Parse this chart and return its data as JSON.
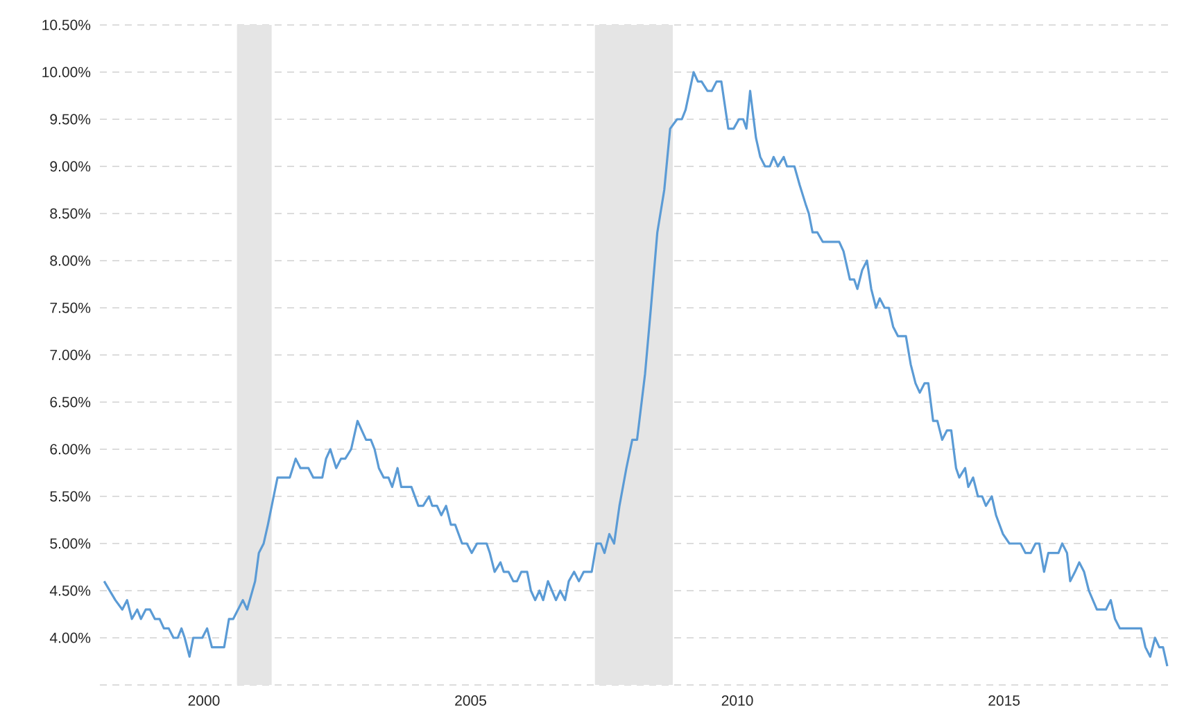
{
  "chart_data": {
    "type": "line",
    "legend": false,
    "grid": "y",
    "xlim": [
      1998.05,
      2018.1
    ],
    "xticks": [
      2000,
      2005,
      2010,
      2015
    ],
    "ylim": [
      3.5,
      10.5
    ],
    "yticks": [
      {
        "value": 3.5,
        "label": null
      },
      {
        "value": 4,
        "label": "4.00%"
      },
      {
        "value": 4.5,
        "label": "4.50%"
      },
      {
        "value": 5,
        "label": "5.00%"
      },
      {
        "value": 5.5,
        "label": "5.50%"
      },
      {
        "value": 6,
        "label": "6.00%"
      },
      {
        "value": 6.5,
        "label": "6.50%"
      },
      {
        "value": 7,
        "label": "7.00%"
      },
      {
        "value": 7.5,
        "label": "7.50%"
      },
      {
        "value": 8,
        "label": "8.00%"
      },
      {
        "value": 8.5,
        "label": "8.50%"
      },
      {
        "value": 9,
        "label": "9.00%"
      },
      {
        "value": 9.5,
        "label": "9.50%"
      },
      {
        "value": 10,
        "label": "10.00%"
      },
      {
        "value": 10.5,
        "label": "10.50%"
      }
    ],
    "bands": [
      {
        "axis": "x",
        "from": 2000.62,
        "to": 2001.27,
        "color": "#e5e5e5"
      },
      {
        "axis": "x",
        "from": 2007.33,
        "to": 2008.79,
        "color": "#e5e5e5"
      }
    ],
    "series": [
      {
        "color": "#5b9bd5",
        "x": [
          1998.13,
          1998.34,
          1998.47,
          1998.56,
          1998.65,
          1998.75,
          1998.82,
          1998.91,
          1998.99,
          1999.08,
          1999.17,
          1999.25,
          1999.34,
          1999.43,
          1999.51,
          1999.58,
          1999.64,
          1999.73,
          1999.8,
          1999.97,
          2000.06,
          2000.15,
          2000.38,
          2000.47,
          2000.55,
          2000.73,
          2000.81,
          2000.96,
          2001.03,
          2001.12,
          2001.2,
          2001.29,
          2001.38,
          2001.61,
          2001.72,
          2001.81,
          2001.96,
          2002.05,
          2002.22,
          2002.29,
          2002.37,
          2002.48,
          2002.57,
          2002.65,
          2002.76,
          2002.88,
          2002.96,
          2003.04,
          2003.13,
          2003.2,
          2003.28,
          2003.37,
          2003.46,
          2003.53,
          2003.63,
          2003.7,
          2003.89,
          2004.02,
          2004.11,
          2004.22,
          2004.28,
          2004.37,
          2004.45,
          2004.54,
          2004.63,
          2004.71,
          2004.84,
          2004.93,
          2005.02,
          2005.12,
          2005.3,
          2005.36,
          2005.45,
          2005.56,
          2005.62,
          2005.71,
          2005.8,
          2005.87,
          2005.95,
          2006.06,
          2006.13,
          2006.21,
          2006.29,
          2006.36,
          2006.45,
          2006.6,
          2006.68,
          2006.77,
          2006.84,
          2006.94,
          2007.03,
          2007.12,
          2007.27,
          2007.36,
          2007.44,
          2007.51,
          2007.6,
          2007.69,
          2007.79,
          2007.92,
          2008.03,
          2008.12,
          2008.27,
          2008.38,
          2008.5,
          2008.63,
          2008.74,
          2008.87,
          2008.96,
          2009.03,
          2009.18,
          2009.26,
          2009.33,
          2009.44,
          2009.52,
          2009.61,
          2009.7,
          2009.83,
          2009.93,
          2010.03,
          2010.11,
          2010.17,
          2010.24,
          2010.35,
          2010.43,
          2010.52,
          2010.61,
          2010.68,
          2010.76,
          2010.87,
          2010.93,
          2011.07,
          2011.17,
          2011.28,
          2011.34,
          2011.41,
          2011.5,
          2011.6,
          2011.91,
          2011.99,
          2012.11,
          2012.19,
          2012.25,
          2012.34,
          2012.43,
          2012.51,
          2012.6,
          2012.67,
          2012.76,
          2012.84,
          2012.92,
          2013.01,
          2013.16,
          2013.25,
          2013.34,
          2013.42,
          2013.51,
          2013.58,
          2013.67,
          2013.75,
          2013.84,
          2013.93,
          2014.01,
          2014.1,
          2014.16,
          2014.27,
          2014.33,
          2014.42,
          2014.51,
          2014.59,
          2014.66,
          2014.77,
          2014.85,
          2014.98,
          2015.1,
          2015.31,
          2015.4,
          2015.5,
          2015.59,
          2015.66,
          2015.75,
          2015.83,
          2016.02,
          2016.09,
          2016.18,
          2016.24,
          2016.33,
          2016.41,
          2016.5,
          2016.59,
          2016.74,
          2016.91,
          2017.0,
          2017.08,
          2017.17,
          2017.57,
          2017.65,
          2017.74,
          2017.83,
          2017.91,
          2017.98,
          2018.06
        ],
        "values": [
          4.6,
          4.4,
          4.3,
          4.4,
          4.2,
          4.3,
          4.2,
          4.3,
          4.3,
          4.2,
          4.2,
          4.1,
          4.1,
          4.0,
          4.0,
          4.1,
          4.0,
          3.8,
          4.0,
          4.0,
          4.1,
          3.9,
          3.9,
          4.2,
          4.2,
          4.4,
          4.3,
          4.6,
          4.9,
          5.0,
          5.2,
          5.45,
          5.7,
          5.7,
          5.9,
          5.8,
          5.8,
          5.7,
          5.7,
          5.9,
          6.0,
          5.8,
          5.9,
          5.9,
          6.0,
          6.3,
          6.2,
          6.1,
          6.1,
          6.0,
          5.8,
          5.7,
          5.7,
          5.6,
          5.8,
          5.6,
          5.6,
          5.4,
          5.4,
          5.5,
          5.4,
          5.4,
          5.3,
          5.4,
          5.2,
          5.2,
          5.0,
          5.0,
          4.9,
          5.0,
          5.0,
          4.9,
          4.7,
          4.8,
          4.7,
          4.7,
          4.6,
          4.6,
          4.7,
          4.7,
          4.5,
          4.4,
          4.5,
          4.4,
          4.6,
          4.4,
          4.5,
          4.4,
          4.6,
          4.7,
          4.6,
          4.7,
          4.7,
          5.0,
          5.0,
          4.9,
          5.1,
          5.0,
          5.4,
          5.8,
          6.1,
          6.1,
          6.8,
          7.5,
          8.3,
          8.75,
          9.4,
          9.5,
          9.5,
          9.6,
          10.0,
          9.9,
          9.9,
          9.8,
          9.8,
          9.9,
          9.9,
          9.4,
          9.4,
          9.5,
          9.5,
          9.4,
          9.8,
          9.3,
          9.1,
          9.0,
          9.0,
          9.1,
          9.0,
          9.1,
          9.0,
          9.0,
          8.8,
          8.6,
          8.5,
          8.3,
          8.3,
          8.2,
          8.2,
          8.1,
          7.8,
          7.8,
          7.7,
          7.9,
          8.0,
          7.7,
          7.5,
          7.6,
          7.5,
          7.5,
          7.3,
          7.2,
          7.2,
          6.9,
          6.7,
          6.6,
          6.7,
          6.7,
          6.3,
          6.3,
          6.1,
          6.2,
          6.2,
          5.8,
          5.7,
          5.8,
          5.6,
          5.7,
          5.5,
          5.5,
          5.4,
          5.5,
          5.3,
          5.1,
          5.0,
          5.0,
          4.9,
          4.9,
          5.0,
          5.0,
          4.7,
          4.9,
          4.9,
          5.0,
          4.9,
          4.6,
          4.7,
          4.8,
          4.7,
          4.5,
          4.3,
          4.3,
          4.4,
          4.2,
          4.1,
          4.1,
          3.9,
          3.8,
          4.0,
          3.9,
          3.9,
          3.7
        ]
      }
    ]
  }
}
